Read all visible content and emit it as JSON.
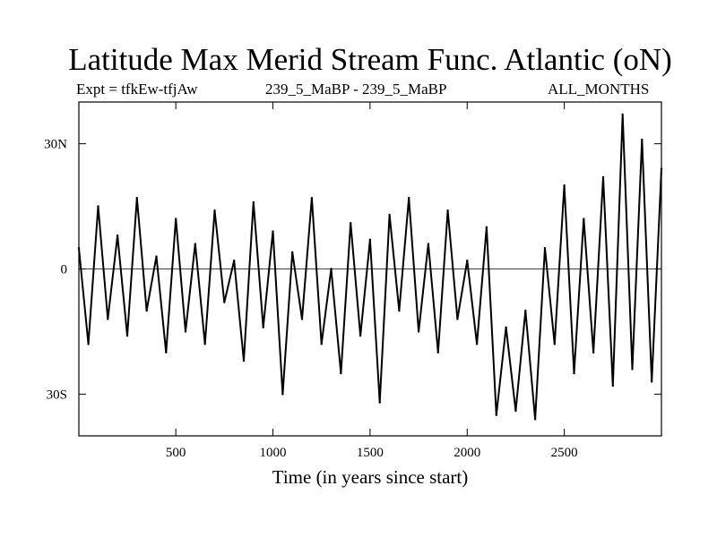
{
  "chart_data": {
    "type": "line",
    "title": "Latitude Max Merid Stream Func. Atlantic (oN)",
    "subtitle_left": "Expt = tfkEw-tfjAw",
    "subtitle_center": "239_5_MaBP - 239_5_MaBP",
    "subtitle_right": "ALL_MONTHS",
    "xlabel": "Time (in years since start)",
    "ylabel": "",
    "xlim": [
      1,
      3000
    ],
    "ylim": [
      -40,
      40
    ],
    "xticks": [
      {
        "value": 500,
        "label": "500"
      },
      {
        "value": 1000,
        "label": "1000"
      },
      {
        "value": 1500,
        "label": "1500"
      },
      {
        "value": 2000,
        "label": "2000"
      },
      {
        "value": 2500,
        "label": "2500"
      }
    ],
    "yticks": [
      {
        "value": 30,
        "label": "30N"
      },
      {
        "value": 0,
        "label": "0"
      },
      {
        "value": -30,
        "label": "30S"
      }
    ],
    "zero_line": true,
    "grid": false,
    "legend": "none",
    "series": [
      {
        "color": "#000000",
        "x": [
          1,
          50,
          100,
          150,
          200,
          250,
          300,
          350,
          400,
          450,
          500,
          550,
          600,
          650,
          700,
          750,
          800,
          850,
          900,
          950,
          1000,
          1050,
          1100,
          1150,
          1200,
          1250,
          1300,
          1350,
          1400,
          1450,
          1500,
          1550,
          1600,
          1650,
          1700,
          1750,
          1800,
          1850,
          1900,
          1950,
          2000,
          2050,
          2100,
          2150,
          2200,
          2250,
          2300,
          2350,
          2400,
          2450,
          2500,
          2550,
          2600,
          2650,
          2700,
          2750,
          2800,
          2850,
          2900,
          2950,
          3000
        ],
        "y": [
          5,
          -18,
          15,
          -12,
          8,
          -16,
          17,
          -10,
          3,
          -20,
          12,
          -15,
          6,
          -18,
          14,
          -8,
          2,
          -22,
          16,
          -14,
          9,
          -30,
          4,
          -12,
          17,
          -18,
          0,
          -25,
          11,
          -16,
          7,
          -32,
          13,
          -10,
          17,
          -15,
          6,
          -20,
          14,
          -12,
          2,
          -18,
          10,
          -35,
          -14,
          -34,
          -10,
          -36,
          5,
          -18,
          20,
          -25,
          12,
          -20,
          22,
          -28,
          37,
          -24,
          31,
          -27,
          24
        ]
      }
    ]
  }
}
